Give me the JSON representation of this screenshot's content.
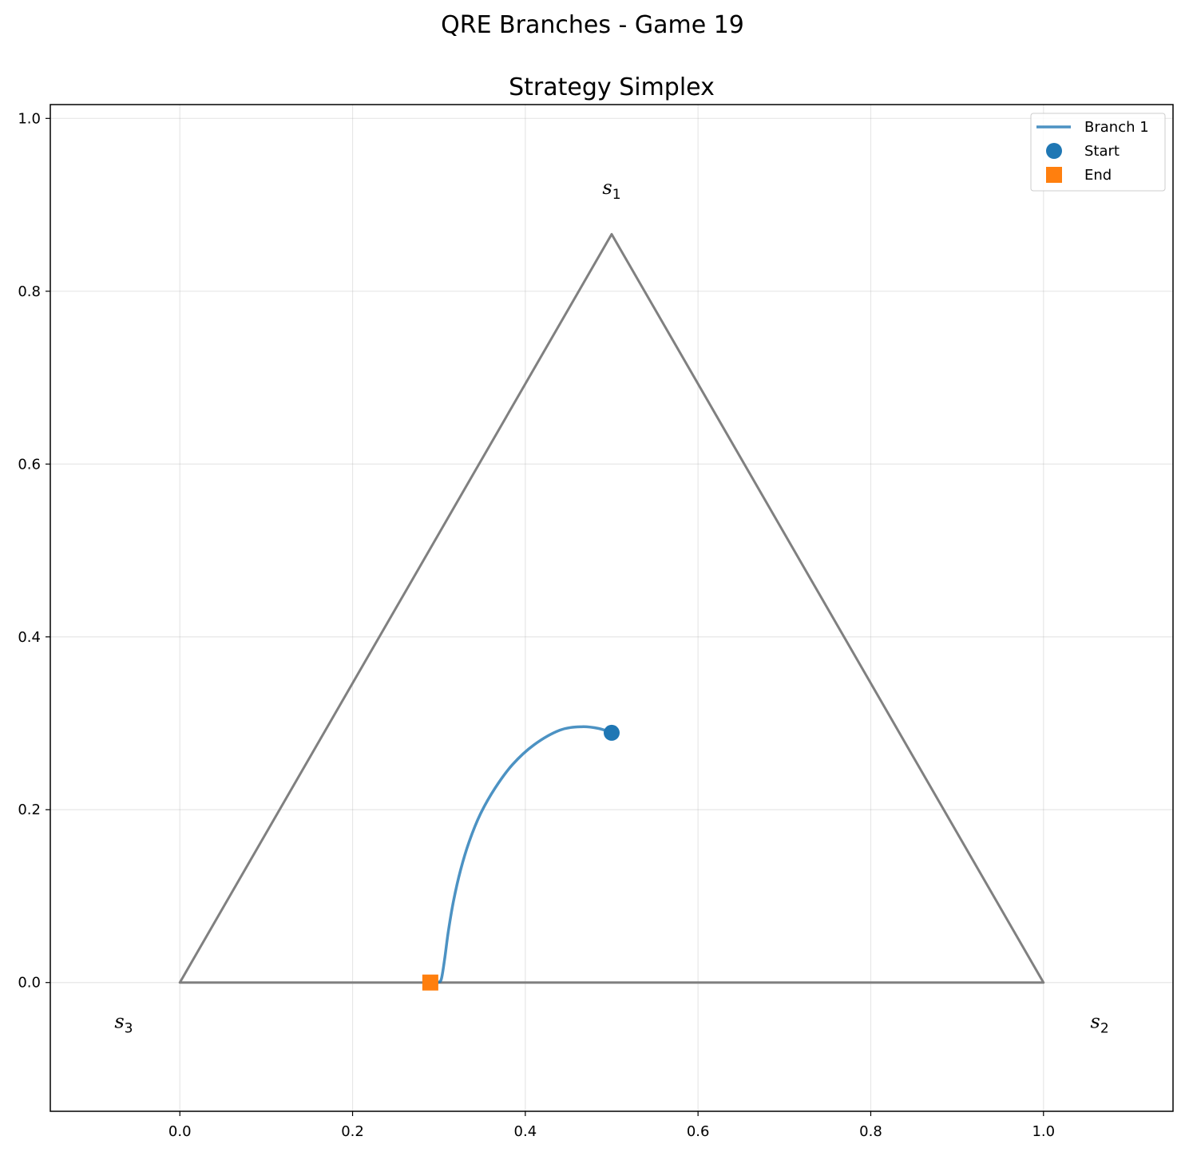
{
  "suptitle": "QRE Branches - Game 19",
  "chart_data": {
    "type": "line",
    "title": "Strategy Simplex",
    "xlabel": "",
    "ylabel": "",
    "xlim": [
      -0.15,
      1.15
    ],
    "ylim": [
      -0.149,
      1.016
    ],
    "xticks": [
      0.0,
      0.2,
      0.4,
      0.6,
      0.8,
      1.0
    ],
    "xtick_labels": [
      "0.0",
      "0.2",
      "0.4",
      "0.6",
      "0.8",
      "1.0"
    ],
    "yticks": [
      0.0,
      0.2,
      0.4,
      0.6,
      0.8,
      1.0
    ],
    "ytick_labels": [
      "0.0",
      "0.2",
      "0.4",
      "0.6",
      "0.8",
      "1.0"
    ],
    "grid": true,
    "legend_position": "top-right",
    "simplex": {
      "vertices": [
        [
          0.0,
          0.0
        ],
        [
          1.0,
          0.0
        ],
        [
          0.5,
          0.866
        ]
      ],
      "color": "#808080",
      "labels": [
        {
          "base": "s",
          "sub": "1",
          "x": 0.5,
          "y": 0.92
        },
        {
          "base": "s",
          "sub": "2",
          "x": 1.065,
          "y": -0.045
        },
        {
          "base": "s",
          "sub": "3",
          "x": -0.065,
          "y": -0.045
        }
      ]
    },
    "series": [
      {
        "name": "Branch 1",
        "color": "#1f77b4",
        "x": [
          0.5,
          0.485,
          0.465,
          0.44,
          0.41,
          0.385,
          0.365,
          0.348,
          0.335,
          0.325,
          0.317,
          0.311,
          0.307,
          0.304,
          0.302,
          0.298,
          0.29
        ],
        "y": [
          0.289,
          0.294,
          0.296,
          0.292,
          0.275,
          0.252,
          0.225,
          0.195,
          0.163,
          0.13,
          0.095,
          0.06,
          0.03,
          0.01,
          0.002,
          0.0,
          0.0
        ]
      }
    ],
    "markers": [
      {
        "name": "Start",
        "shape": "circle",
        "color": "#1f77b4",
        "x": 0.5,
        "y": 0.289
      },
      {
        "name": "End",
        "shape": "square",
        "color": "#ff7f0e",
        "x": 0.29,
        "y": 0.0
      }
    ]
  }
}
